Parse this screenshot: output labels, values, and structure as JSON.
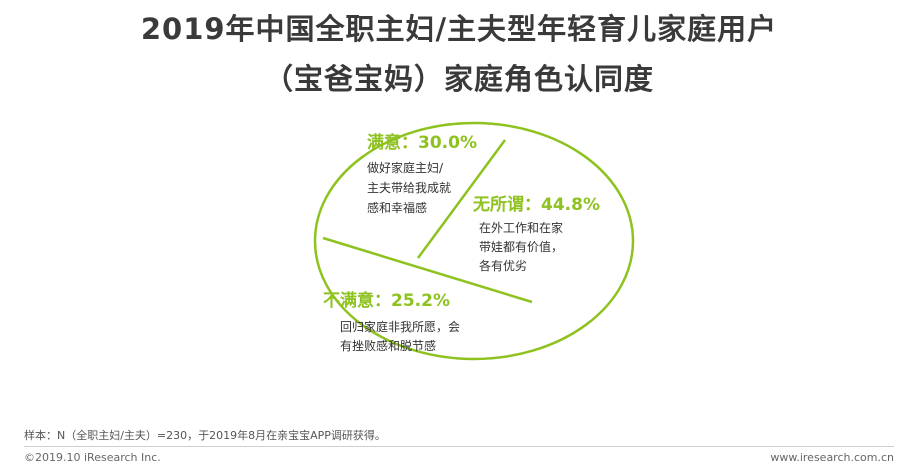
{
  "title_line1": "2019年中国全职主妇/主夫型年轻育儿家庭用户",
  "title_line2": "（宝爸宝妈）家庭角色认同度",
  "colors": {
    "green": "#8dc21f",
    "title": "#3a3a3a",
    "text": "#333333"
  },
  "chart_data": {
    "type": "pie",
    "title": "2019年中国全职主妇/主夫型年轻育儿家庭用户（宝爸宝妈）家庭角色认同度",
    "slices": [
      {
        "label": "满意：30.0%",
        "value": 30.0,
        "desc": [
          "做好家庭主妇/",
          "主夫带给我成就",
          "感和幸福感"
        ]
      },
      {
        "label": "无所谓：44.8%",
        "value": 44.8,
        "desc": [
          "在外工作和在家",
          "带娃都有价值，",
          "各有优劣"
        ]
      },
      {
        "label": "不满意：25.2%",
        "value": 25.2,
        "desc": [
          "回归家庭非我所愿，会",
          "有挫败感和脱节感"
        ]
      }
    ]
  },
  "note": "样本：N（全职主妇/主夫）=230，于2019年8月在亲宝宝APP调研获得。",
  "footer_left": "©2019.10 iResearch Inc.",
  "footer_right": "www.iresearch.com.cn"
}
